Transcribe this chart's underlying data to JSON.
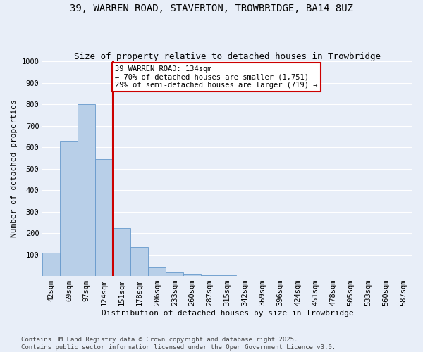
{
  "title_line1": "39, WARREN ROAD, STAVERTON, TROWBRIDGE, BA14 8UZ",
  "title_line2": "Size of property relative to detached houses in Trowbridge",
  "xlabel": "Distribution of detached houses by size in Trowbridge",
  "ylabel": "Number of detached properties",
  "categories": [
    "42sqm",
    "69sqm",
    "97sqm",
    "124sqm",
    "151sqm",
    "178sqm",
    "206sqm",
    "233sqm",
    "260sqm",
    "287sqm",
    "315sqm",
    "342sqm",
    "369sqm",
    "396sqm",
    "424sqm",
    "451sqm",
    "478sqm",
    "505sqm",
    "533sqm",
    "560sqm",
    "587sqm"
  ],
  "values": [
    108,
    630,
    800,
    545,
    222,
    135,
    43,
    16,
    10,
    5,
    3,
    1,
    0,
    0,
    0,
    0,
    0,
    0,
    0,
    0,
    0
  ],
  "bar_color": "#b8cfe8",
  "bar_edge_color": "#6699cc",
  "vline_color": "#cc0000",
  "vline_pos": 3.5,
  "annotation_title": "39 WARREN ROAD: 134sqm",
  "annotation_line1": "← 70% of detached houses are smaller (1,751)",
  "annotation_line2": "29% of semi-detached houses are larger (719) →",
  "annotation_box_color": "#cc0000",
  "annotation_bg": "#ffffff",
  "ylim": [
    0,
    1000
  ],
  "yticks": [
    0,
    100,
    200,
    300,
    400,
    500,
    600,
    700,
    800,
    900,
    1000
  ],
  "footer_line1": "Contains HM Land Registry data © Crown copyright and database right 2025.",
  "footer_line2": "Contains public sector information licensed under the Open Government Licence v3.0.",
  "background_color": "#e8eef8",
  "grid_color": "#ffffff",
  "title_fontsize": 10,
  "subtitle_fontsize": 9,
  "axis_label_fontsize": 8,
  "tick_fontsize": 7.5,
  "annotation_fontsize": 7.5,
  "footer_fontsize": 6.5
}
